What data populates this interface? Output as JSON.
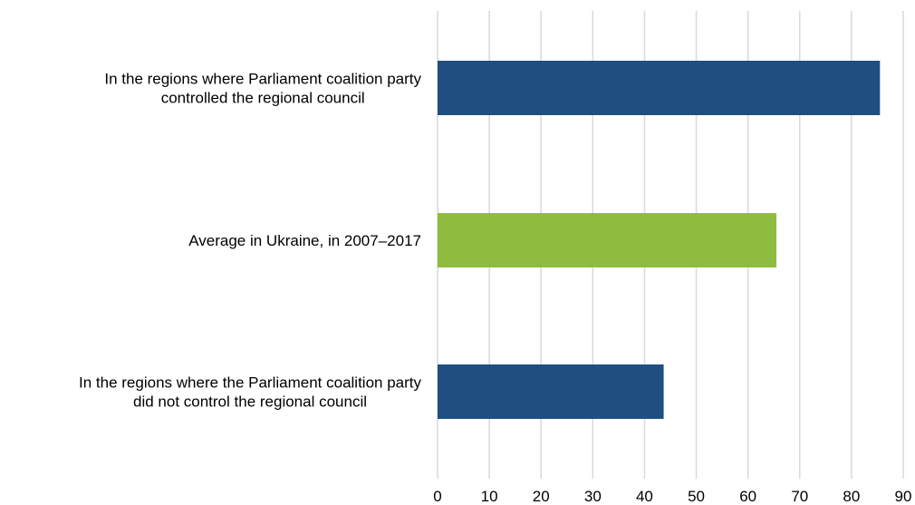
{
  "chart_data": {
    "type": "bar",
    "orientation": "horizontal",
    "title": "",
    "xlabel": "",
    "ylabel": "",
    "categories": [
      [
        "In the regions where Parliament coalition party",
        "controlled the regional council"
      ],
      [
        "Average in Ukraine, in 2007–2017"
      ],
      [
        "In the regions where the Parliament coalition party",
        "did not control the regional council"
      ]
    ],
    "values": [
      85.5,
      65.5,
      43.7
    ],
    "bar_colors": [
      "#1f4e80",
      "#8fbc3f",
      "#1f4e80"
    ],
    "xlim": [
      0,
      90
    ],
    "xticks": [
      "0",
      "10",
      "20",
      "30",
      "40",
      "50",
      "60",
      "70",
      "80",
      "90"
    ],
    "grid": true,
    "grid_color": "#d9d9d9",
    "legend": "none"
  }
}
